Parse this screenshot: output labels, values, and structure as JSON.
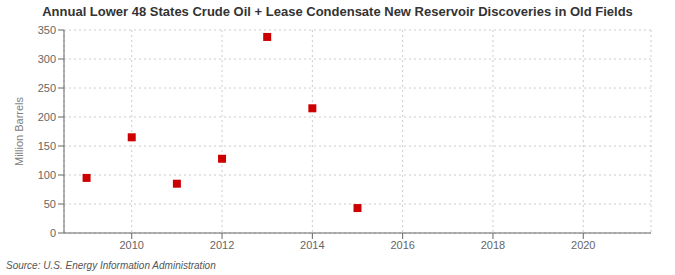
{
  "chart_data": {
    "type": "scatter",
    "title": "Annual Lower 48 States Crude Oil + Lease Condensate New Reservoir Discoveries in Old Fields",
    "ylabel": "Million Barrels",
    "source": "Source: U.S. Energy Information Administration",
    "x": [
      2009,
      2010,
      2011,
      2012,
      2013,
      2014,
      2015
    ],
    "values": [
      95,
      165,
      85,
      128,
      338,
      215,
      43
    ],
    "color": "#cc0000",
    "marker": "square",
    "xlim": [
      2008.5,
      2021.5
    ],
    "xticks": [
      2010,
      2012,
      2014,
      2016,
      2018,
      2020
    ],
    "ylim": [
      0,
      350
    ],
    "yticks": [
      0,
      50,
      100,
      150,
      200,
      250,
      300,
      350
    ],
    "grid": true
  }
}
